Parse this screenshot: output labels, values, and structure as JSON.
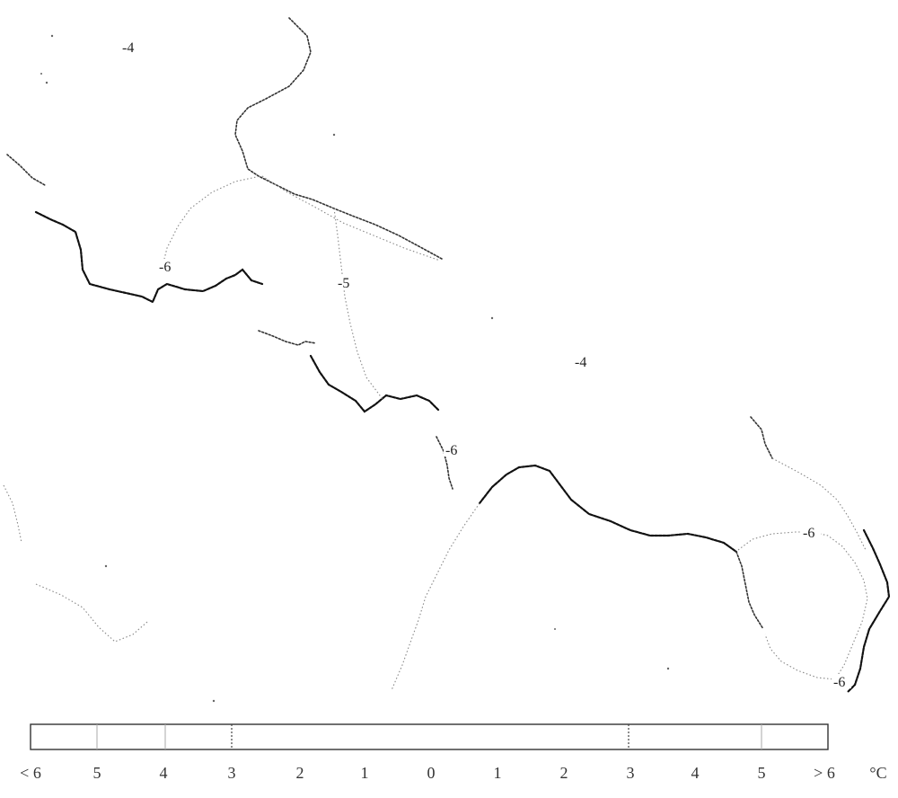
{
  "map": {
    "contour_labels": {
      "nw": "-4",
      "center": "-4",
      "w1": "-6",
      "w2": "-5",
      "mid": "-6",
      "east": "-6",
      "se": "-6"
    }
  },
  "legend": {
    "ticks": [
      "< 6",
      "5",
      "4",
      "3",
      "2",
      "1",
      "0",
      "1",
      "2",
      "3",
      "4",
      "5",
      "> 6"
    ],
    "unit": "°C"
  },
  "colors": {
    "coastline": "#333333",
    "isoline": "#888888",
    "background": "#ffffff"
  }
}
